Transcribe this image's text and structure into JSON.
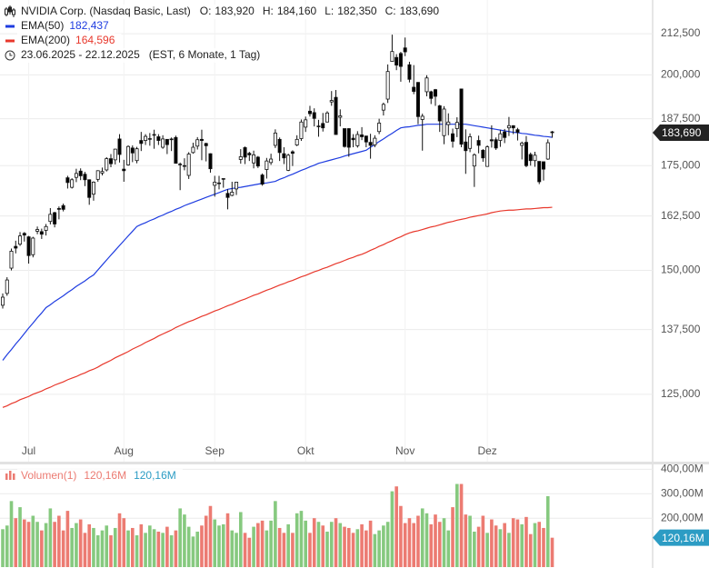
{
  "header": {
    "title": "NVIDIA Corp. (Nasdaq Basic, Last)",
    "quote": [
      {
        "label": "O:",
        "value": "183,920"
      },
      {
        "label": "H:",
        "value": "184,160"
      },
      {
        "label": "L:",
        "value": "182,350"
      },
      {
        "label": "C:",
        "value": "183,690"
      }
    ],
    "period": "23.06.2025 - 22.12.2025",
    "period_note": "(EST, 6 Monate, 1 Tag)"
  },
  "chart_data": {
    "type": "candlestick",
    "log": true,
    "grid": true,
    "up_color": "#ffffff",
    "down_color": "#000000",
    "ylim": [
      113.2,
      223.3
    ],
    "yticks": [
      {
        "value": 125,
        "label": "125,000"
      },
      {
        "value": 137.5,
        "label": "137,500"
      },
      {
        "value": 150,
        "label": "150,000"
      },
      {
        "value": 162.5,
        "label": "162,500"
      },
      {
        "value": 175,
        "label": "175,000"
      },
      {
        "value": 187.5,
        "label": "187,500"
      },
      {
        "value": 200,
        "label": "200,000"
      },
      {
        "value": 212.5,
        "label": "212,500"
      }
    ],
    "categories": [
      null,
      null,
      null,
      null,
      null,
      null,
      "Jul",
      null,
      null,
      null,
      null,
      null,
      null,
      null,
      null,
      null,
      null,
      null,
      null,
      null,
      null,
      null,
      null,
      null,
      null,
      null,
      null,
      null,
      "Aug",
      null,
      null,
      null,
      null,
      null,
      null,
      null,
      null,
      null,
      null,
      null,
      null,
      null,
      null,
      null,
      null,
      null,
      null,
      null,
      null,
      "Sep",
      null,
      null,
      null,
      null,
      null,
      null,
      null,
      null,
      null,
      null,
      null,
      null,
      null,
      null,
      null,
      null,
      null,
      null,
      null,
      null,
      "Okt",
      null,
      null,
      null,
      null,
      null,
      null,
      null,
      null,
      null,
      null,
      null,
      null,
      null,
      null,
      null,
      null,
      null,
      null,
      null,
      null,
      null,
      null,
      "Nov",
      null,
      null,
      null,
      null,
      null,
      null,
      null,
      null,
      null,
      null,
      null,
      null,
      null,
      null,
      null,
      null,
      null,
      null,
      "Dez",
      null,
      null,
      null,
      null,
      null,
      null,
      null,
      null,
      null,
      null,
      null,
      null,
      null,
      null,
      null
    ],
    "ohlc": [
      [
        142.5,
        145.0,
        141.8,
        144.2
      ],
      [
        145.0,
        148.5,
        144.5,
        147.9
      ],
      [
        150.5,
        154.9,
        150.0,
        154.3
      ],
      [
        155.4,
        156.7,
        153.8,
        155.0
      ],
      [
        155.9,
        158.7,
        155.5,
        157.8
      ],
      [
        158.4,
        158.7,
        156.5,
        158.0
      ],
      [
        157.6,
        157.8,
        151.5,
        153.3
      ],
      [
        153.5,
        157.6,
        152.9,
        157.3
      ],
      [
        158.9,
        160.0,
        158.2,
        159.3
      ],
      [
        158.8,
        159.5,
        157.1,
        158.2
      ],
      [
        159.1,
        160.6,
        157.9,
        160.0
      ],
      [
        161.2,
        164.4,
        160.5,
        162.9
      ],
      [
        163.3,
        163.5,
        159.8,
        160.6
      ],
      [
        164.3,
        164.8,
        161.7,
        164.1
      ],
      [
        165.0,
        165.5,
        163.6,
        164.1
      ],
      [
        171.9,
        172.4,
        169.2,
        170.7
      ],
      [
        169.5,
        171.8,
        169.2,
        171.4
      ],
      [
        172.0,
        174.2,
        170.8,
        173.0
      ],
      [
        173.6,
        174.3,
        171.3,
        172.4
      ],
      [
        172.8,
        173.4,
        169.8,
        171.4
      ],
      [
        171.4,
        171.5,
        165.2,
        167.0
      ],
      [
        167.8,
        171.0,
        166.2,
        170.8
      ],
      [
        171.5,
        173.8,
        170.9,
        173.7
      ],
      [
        173.1,
        174.5,
        172.5,
        173.5
      ],
      [
        173.9,
        177.2,
        173.5,
        176.8
      ],
      [
        176.8,
        178.0,
        174.6,
        175.5
      ],
      [
        176.5,
        179.4,
        175.3,
        179.3
      ],
      [
        182.0,
        183.3,
        175.8,
        177.9
      ],
      [
        174.1,
        176.5,
        170.9,
        173.7
      ],
      [
        175.2,
        180.3,
        175.0,
        180.0
      ],
      [
        179.6,
        180.3,
        175.9,
        178.3
      ],
      [
        176.3,
        179.9,
        175.6,
        179.4
      ],
      [
        181.6,
        183.9,
        178.8,
        180.8
      ],
      [
        181.6,
        183.3,
        180.4,
        182.7
      ],
      [
        182.1,
        183.6,
        180.2,
        182.1
      ],
      [
        183.0,
        184.5,
        179.4,
        183.2
      ],
      [
        182.6,
        183.3,
        180.4,
        181.6
      ],
      [
        179.8,
        183.0,
        179.4,
        182.0
      ],
      [
        181.9,
        181.9,
        178.0,
        180.5
      ],
      [
        181.9,
        182.4,
        178.8,
        182.0
      ],
      [
        182.4,
        182.9,
        175.6,
        175.6
      ],
      [
        175.4,
        175.8,
        168.8,
        175.4
      ],
      [
        174.9,
        176.9,
        173.8,
        175.0
      ],
      [
        172.5,
        178.5,
        171.6,
        178.0
      ],
      [
        178.4,
        181.0,
        178.1,
        179.8
      ],
      [
        180.1,
        182.5,
        179.2,
        181.8
      ],
      [
        181.9,
        184.5,
        176.4,
        181.6
      ],
      [
        180.8,
        181.0,
        176.1,
        180.2
      ],
      [
        178.1,
        178.2,
        173.2,
        174.2
      ],
      [
        170.0,
        172.4,
        167.2,
        170.8
      ],
      [
        170.6,
        172.4,
        169.0,
        170.6
      ],
      [
        171.6,
        171.7,
        169.4,
        171.7
      ],
      [
        168.0,
        169.0,
        164.1,
        167.0
      ],
      [
        167.5,
        170.9,
        167.3,
        168.3
      ],
      [
        169.1,
        170.9,
        167.6,
        170.8
      ],
      [
        176.6,
        179.3,
        175.5,
        177.3
      ],
      [
        179.7,
        180.0,
        175.4,
        177.2
      ],
      [
        178.2,
        178.6,
        176.2,
        177.8
      ],
      [
        175.7,
        178.9,
        174.3,
        177.8
      ],
      [
        177.2,
        177.5,
        174.4,
        174.9
      ],
      [
        172.6,
        173.0,
        169.9,
        170.3
      ],
      [
        174.0,
        177.0,
        171.7,
        176.2
      ],
      [
        175.8,
        178.1,
        175.2,
        176.7
      ],
      [
        180.3,
        184.6,
        179.6,
        183.6
      ],
      [
        181.9,
        182.4,
        176.2,
        178.4
      ],
      [
        178.1,
        179.8,
        175.4,
        177.0
      ],
      [
        173.8,
        178.1,
        173.6,
        177.7
      ],
      [
        178.6,
        179.0,
        174.9,
        178.2
      ],
      [
        180.4,
        183.0,
        180.1,
        181.9
      ],
      [
        182.1,
        187.3,
        181.5,
        186.6
      ],
      [
        185.2,
        188.1,
        183.9,
        187.2
      ],
      [
        189.6,
        191.1,
        188.1,
        188.9
      ],
      [
        189.2,
        190.4,
        185.4,
        187.6
      ],
      [
        185.5,
        187.2,
        182.6,
        185.5
      ],
      [
        186.2,
        189.1,
        184.0,
        185.0
      ],
      [
        186.6,
        189.6,
        186.5,
        189.1
      ],
      [
        192.2,
        195.3,
        191.1,
        192.6
      ],
      [
        193.5,
        195.6,
        183.2,
        183.2
      ],
      [
        187.9,
        190.1,
        185.4,
        188.3
      ],
      [
        184.8,
        184.8,
        179.7,
        180.0
      ],
      [
        184.8,
        184.9,
        177.3,
        179.8
      ],
      [
        182.2,
        183.3,
        179.8,
        181.8
      ],
      [
        180.2,
        184.1,
        179.7,
        183.2
      ],
      [
        183.1,
        185.2,
        181.7,
        182.6
      ],
      [
        182.8,
        182.8,
        179.8,
        181.2
      ],
      [
        181.1,
        183.4,
        176.8,
        180.3
      ],
      [
        180.4,
        183.0,
        179.8,
        182.2
      ],
      [
        184.0,
        187.5,
        183.3,
        186.3
      ],
      [
        189.9,
        192.0,
        188.4,
        191.5
      ],
      [
        193.0,
        203.1,
        191.9,
        201.0
      ],
      [
        204.0,
        212.2,
        203.9,
        207.0
      ],
      [
        205.2,
        206.2,
        201.4,
        202.9
      ],
      [
        206.4,
        206.9,
        198.0,
        202.5
      ],
      [
        208.1,
        211.3,
        205.6,
        206.9
      ],
      [
        203.0,
        203.9,
        197.8,
        198.7
      ],
      [
        196.4,
        202.9,
        194.4,
        195.2
      ],
      [
        197.8,
        197.9,
        186.0,
        188.1
      ],
      [
        187.3,
        188.9,
        178.9,
        188.2
      ],
      [
        195.1,
        199.9,
        193.8,
        199.1
      ],
      [
        195.1,
        195.4,
        191.6,
        193.2
      ],
      [
        195.7,
        195.9,
        191.1,
        193.8
      ],
      [
        191.1,
        191.4,
        183.9,
        186.9
      ],
      [
        182.9,
        191.0,
        180.6,
        190.2
      ],
      [
        185.9,
        189.0,
        183.0,
        186.6
      ],
      [
        183.4,
        184.8,
        179.7,
        181.4
      ],
      [
        184.8,
        187.9,
        182.5,
        186.5
      ],
      [
        195.9,
        196.0,
        179.8,
        180.6
      ],
      [
        181.2,
        184.6,
        172.9,
        178.9
      ],
      [
        179.5,
        183.5,
        178.5,
        182.6
      ],
      [
        174.9,
        178.2,
        169.6,
        177.8
      ],
      [
        181.6,
        182.9,
        178.2,
        180.3
      ],
      [
        179.0,
        179.3,
        176.0,
        177.0
      ],
      [
        174.8,
        180.3,
        174.7,
        179.9
      ],
      [
        181.8,
        185.7,
        179.7,
        181.5
      ],
      [
        181.8,
        182.4,
        179.1,
        179.6
      ],
      [
        181.6,
        184.5,
        179.9,
        183.4
      ],
      [
        183.9,
        184.7,
        180.9,
        182.4
      ],
      [
        185.0,
        188.0,
        182.8,
        185.6
      ],
      [
        185.6,
        185.7,
        183.3,
        185.0
      ],
      [
        184.5,
        185.0,
        181.6,
        183.8
      ],
      [
        180.3,
        181.3,
        176.6,
        180.9
      ],
      [
        181.1,
        182.8,
        174.6,
        175.0
      ],
      [
        177.9,
        178.4,
        175.0,
        176.3
      ],
      [
        176.3,
        178.6,
        174.7,
        177.7
      ],
      [
        176.1,
        176.1,
        170.3,
        170.9
      ],
      [
        176.0,
        176.1,
        171.2,
        174.1
      ],
      [
        176.7,
        181.9,
        176.5,
        181.0
      ],
      [
        183.92,
        184.16,
        182.35,
        183.69
      ]
    ],
    "series": [
      {
        "name": "EMA(50)",
        "color": "#1e3ce0",
        "last_label": "182,437",
        "values": [
          131.4,
          132.5,
          133.5,
          134.6,
          135.6,
          136.7,
          137.8,
          138.8,
          139.9,
          140.9,
          142,
          142.6,
          143.3,
          143.9,
          144.5,
          145.2,
          145.8,
          146.5,
          147.1,
          147.7,
          148.4,
          149,
          150.1,
          151.2,
          152.3,
          153.4,
          154.5,
          155.6,
          156.7,
          157.8,
          158.9,
          160,
          160.5,
          160.9,
          161.4,
          161.8,
          162.3,
          162.7,
          163.2,
          163.6,
          164.1,
          164.5,
          165,
          165.4,
          165.8,
          166.2,
          166.6,
          167,
          167.4,
          167.8,
          168.2,
          168.6,
          169,
          169.2,
          169.4,
          169.5,
          169.7,
          169.9,
          170.1,
          170.3,
          170.5,
          170.6,
          170.8,
          171,
          171.5,
          171.9,
          172.4,
          172.8,
          173.3,
          173.8,
          174.2,
          174.7,
          175.1,
          175.6,
          175.9,
          176.2,
          176.5,
          176.8,
          177.1,
          177.5,
          177.8,
          178.1,
          178.4,
          178.7,
          179,
          179.8,
          180.5,
          181.3,
          182,
          182.8,
          183.5,
          184.3,
          185,
          185.2,
          185.3,
          185.5,
          185.7,
          185.8,
          186,
          186,
          186,
          186,
          186,
          186,
          186,
          186,
          186,
          186,
          185.8,
          185.6,
          185.4,
          185.2,
          185,
          184.8,
          184.6,
          184.4,
          184.2,
          184,
          183.8,
          183.7,
          183.5,
          183.4,
          183.2,
          183,
          182.9,
          182.7,
          182.6,
          182.437
        ]
      },
      {
        "name": "EMA(200)",
        "color": "#e8382c",
        "last_label": "164,596",
        "values": [
          122.6,
          122.9,
          123.3,
          123.6,
          124,
          124.3,
          124.6,
          125,
          125.3,
          125.6,
          126,
          126.3,
          126.7,
          127,
          127.3,
          127.7,
          128,
          128.3,
          128.7,
          129,
          129.4,
          129.7,
          130.1,
          130.6,
          131,
          131.4,
          131.9,
          132.3,
          132.7,
          133.1,
          133.6,
          134,
          134.4,
          134.9,
          135.3,
          135.7,
          136.2,
          136.6,
          137,
          137.4,
          137.9,
          138.3,
          138.7,
          139.1,
          139.4,
          139.8,
          140.2,
          140.5,
          140.9,
          141.3,
          141.6,
          142,
          142.4,
          142.7,
          143.1,
          143.5,
          143.8,
          144.2,
          144.6,
          144.9,
          145.3,
          145.7,
          146,
          146.4,
          146.8,
          147.1,
          147.5,
          147.8,
          148.2,
          148.6,
          148.9,
          149.3,
          149.7,
          150,
          150.4,
          150.7,
          151.1,
          151.5,
          151.8,
          152.2,
          152.6,
          152.9,
          153.3,
          153.6,
          154,
          154.5,
          154.9,
          155.4,
          155.8,
          156.3,
          156.7,
          157.2,
          157.6,
          158.1,
          158.5,
          158.8,
          159,
          159.3,
          159.6,
          159.9,
          160.1,
          160.4,
          160.7,
          161,
          161.2,
          161.5,
          161.7,
          161.9,
          162.2,
          162.4,
          162.6,
          162.8,
          163,
          163.3,
          163.5,
          163.7,
          163.8,
          163.9,
          163.9,
          164,
          164.1,
          164.2,
          164.2,
          164.3,
          164.4,
          164.5,
          164.5,
          164.596
        ]
      }
    ],
    "volume": {
      "name": "Volumen(1)",
      "last_label": "120,16M",
      "up_color": "#86c97f",
      "down_color": "#ec7b72",
      "label_color": "#2c9cc4",
      "ylim": [
        0,
        420
      ],
      "yticks": [
        {
          "value": 200,
          "label": "200,00M"
        },
        {
          "value": 300,
          "label": "300,00M"
        },
        {
          "value": 400,
          "label": "400,00M"
        }
      ],
      "values": [
        155,
        170,
        270,
        200,
        245,
        195,
        185,
        210,
        185,
        150,
        180,
        240,
        185,
        210,
        150,
        230,
        160,
        180,
        195,
        140,
        175,
        160,
        130,
        150,
        170,
        130,
        160,
        220,
        200,
        150,
        160,
        130,
        175,
        140,
        170,
        155,
        145,
        140,
        165,
        130,
        150,
        240,
        215,
        165,
        125,
        145,
        170,
        210,
        250,
        195,
        170,
        175,
        220,
        150,
        140,
        225,
        140,
        120,
        165,
        180,
        190,
        150,
        190,
        270,
        160,
        140,
        175,
        140,
        220,
        230,
        190,
        140,
        200,
        185,
        170,
        145,
        185,
        200,
        180,
        165,
        160,
        140,
        155,
        175,
        150,
        190,
        135,
        150,
        170,
        185,
        310,
        330,
        250,
        180,
        200,
        180,
        210,
        240,
        220,
        175,
        215,
        185,
        200,
        150,
        245,
        340,
        340,
        215,
        210,
        145,
        165,
        210,
        140,
        195,
        170,
        155,
        180,
        140,
        200,
        195,
        175,
        205,
        135,
        180,
        185,
        160,
        290,
        120.16
      ]
    }
  }
}
